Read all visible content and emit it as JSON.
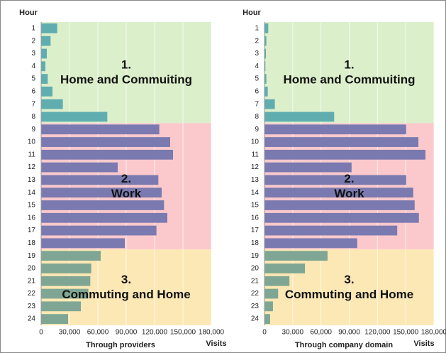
{
  "chart_data": [
    {
      "type": "bar",
      "orientation": "horizontal",
      "ylabel": "Hour",
      "xlabel": "Through providers",
      "xunit": "Visits",
      "categories": [
        "1",
        "2",
        "3",
        "4",
        "5",
        "6",
        "7",
        "8",
        "9",
        "10",
        "11",
        "12",
        "13",
        "14",
        "15",
        "16",
        "17",
        "18",
        "19",
        "20",
        "21",
        "22",
        "23",
        "24"
      ],
      "xlim": [
        0,
        180000
      ],
      "xticks": [
        0,
        {
          "value": 30000,
          "label": "30,000"
        },
        {
          "value": 60000,
          "label": "60,000"
        },
        {
          "value": 90000,
          "label": "90,000"
        },
        {
          "value": 120000,
          "label": "120,000"
        },
        {
          "value": 150000,
          "label": "150,000"
        },
        {
          "value": 180000,
          "label": "180,000"
        }
      ],
      "grid": true,
      "series": [
        {
          "number": "1.",
          "name": "Home and Commuiting",
          "color": "#5fadaf",
          "zone_color": "#dcefcb",
          "values": [
            17000,
            10000,
            6000,
            4500,
            7000,
            12000,
            23000,
            70000,
            null,
            null,
            null,
            null,
            null,
            null,
            null,
            null,
            null,
            null,
            null,
            null,
            null,
            null,
            null,
            null
          ]
        },
        {
          "number": "2.",
          "name": "Work",
          "color": "#7a7ab0",
          "zone_color": "#fbc9cc",
          "values": [
            null,
            null,
            null,
            null,
            null,
            null,
            null,
            null,
            125000,
            136500,
            139500,
            81000,
            124000,
            127500,
            130000,
            133500,
            122000,
            88500,
            null,
            null,
            null,
            null,
            null,
            null
          ]
        },
        {
          "number": "3.",
          "name": "Commuting and Home",
          "color": "#7fa694",
          "zone_color": "#fce8b4",
          "values": [
            null,
            null,
            null,
            null,
            null,
            null,
            null,
            null,
            null,
            null,
            null,
            null,
            null,
            null,
            null,
            null,
            null,
            null,
            63000,
            53000,
            52000,
            50000,
            42000,
            28500
          ]
        }
      ]
    },
    {
      "type": "bar",
      "orientation": "horizontal",
      "ylabel": "Hour",
      "xlabel": "Through company domain",
      "xunit": "Visits",
      "categories": [
        "1",
        "2",
        "3",
        "4",
        "5",
        "6",
        "7",
        "8",
        "9",
        "10",
        "11",
        "12",
        "13",
        "14",
        "15",
        "16",
        "17",
        "18",
        "19",
        "20",
        "21",
        "22",
        "23",
        "24"
      ],
      "xlim": [
        0,
        180000
      ],
      "xticks": [
        0,
        {
          "value": 30000,
          "label": "30,000"
        },
        {
          "value": 60000,
          "label": "60,000"
        },
        {
          "value": 90000,
          "label": "90,000"
        },
        {
          "value": 120000,
          "label": "120,000"
        },
        {
          "value": 150000,
          "label": "150,000"
        },
        {
          "value": 180000,
          "label": "180,000"
        }
      ],
      "grid": true,
      "series": [
        {
          "number": "1.",
          "name": "Home and Commuiting",
          "color": "#5fadaf",
          "zone_color": "#dcefcb",
          "values": [
            4000,
            2000,
            1500,
            1000,
            2000,
            3500,
            11000,
            74000,
            null,
            null,
            null,
            null,
            null,
            null,
            null,
            null,
            null,
            null,
            null,
            null,
            null,
            null,
            null,
            null
          ]
        },
        {
          "number": "2.",
          "name": "Work",
          "color": "#7a7ab0",
          "zone_color": "#fbc9cc",
          "values": [
            null,
            null,
            null,
            null,
            null,
            null,
            null,
            null,
            150500,
            163500,
            171000,
            92500,
            150500,
            158000,
            159500,
            164000,
            141000,
            98500,
            null,
            null,
            null,
            null,
            null,
            null
          ]
        },
        {
          "number": "3.",
          "name": "Commuting and Home",
          "color": "#7fa694",
          "zone_color": "#fce8b4",
          "values": [
            null,
            null,
            null,
            null,
            null,
            null,
            null,
            null,
            null,
            null,
            null,
            null,
            null,
            null,
            null,
            null,
            null,
            null,
            67000,
            43000,
            26500,
            14500,
            9000,
            6000
          ]
        }
      ]
    }
  ]
}
